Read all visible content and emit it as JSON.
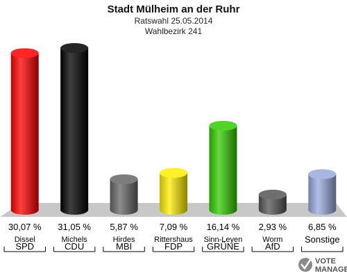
{
  "header": {
    "title": "Stadt Mülheim an der Ruhr",
    "subtitle1": "Ratswahl 25.05.2014",
    "subtitle2": "Wahlbezirk 241"
  },
  "logo": {
    "line1": "VOTE",
    "line2": "MANAGER"
  },
  "chart_data": {
    "type": "bar",
    "title": "Stadt Mülheim an der Ruhr",
    "subtitle": "Ratswahl 25.05.2014 / Wahlbezirk 241",
    "categories": [
      "SPD",
      "CDU",
      "MBI",
      "FDP",
      "GRÜNE",
      "AfD",
      "Sonstige"
    ],
    "candidates": [
      "Dissel",
      "Michels",
      "Hirdes",
      "Rittershaus",
      "Sinn-Leyen",
      "Worm",
      ""
    ],
    "values": [
      30.07,
      31.05,
      5.87,
      7.09,
      16.14,
      2.93,
      6.85
    ],
    "value_labels": [
      "30,07 %",
      "31,05 %",
      "5,87 %",
      "7,09 %",
      "16,14 %",
      "2,93 %",
      "6,85 %"
    ],
    "colors": [
      "#ff0000",
      "#000000",
      "#666666",
      "#ffee00",
      "#33cc00",
      "#555555",
      "#99aadd"
    ],
    "ylim": [
      0,
      32
    ],
    "grid": false,
    "legend": "none"
  }
}
